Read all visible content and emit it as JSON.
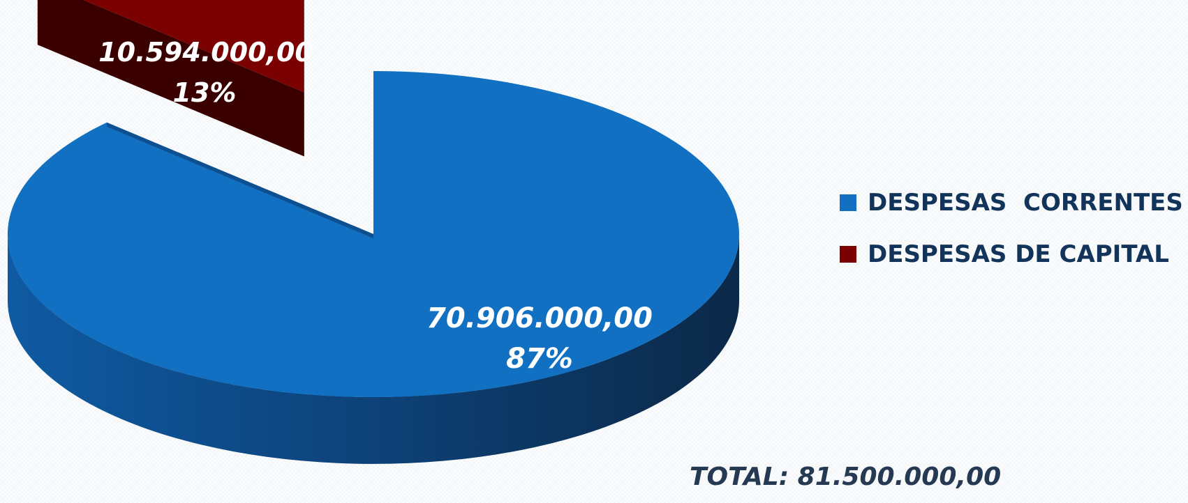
{
  "chart_data": {
    "type": "pie",
    "slices": [
      {
        "label": "DESPESAS  CORRENTES",
        "value": 70906000.0,
        "value_text": "70.906.000,00",
        "percent_text": "87%",
        "color": "#1270c2"
      },
      {
        "label": "DESPESAS DE CAPITAL",
        "value": 10594000.0,
        "value_text": "10.594.000,00",
        "percent_text": "13%",
        "color": "#7b0000"
      }
    ],
    "total_text": "TOTAL: 81.500.000,00",
    "legend_position": "right",
    "three_d": true,
    "exploded_slice": "DESPESAS DE CAPITAL"
  }
}
